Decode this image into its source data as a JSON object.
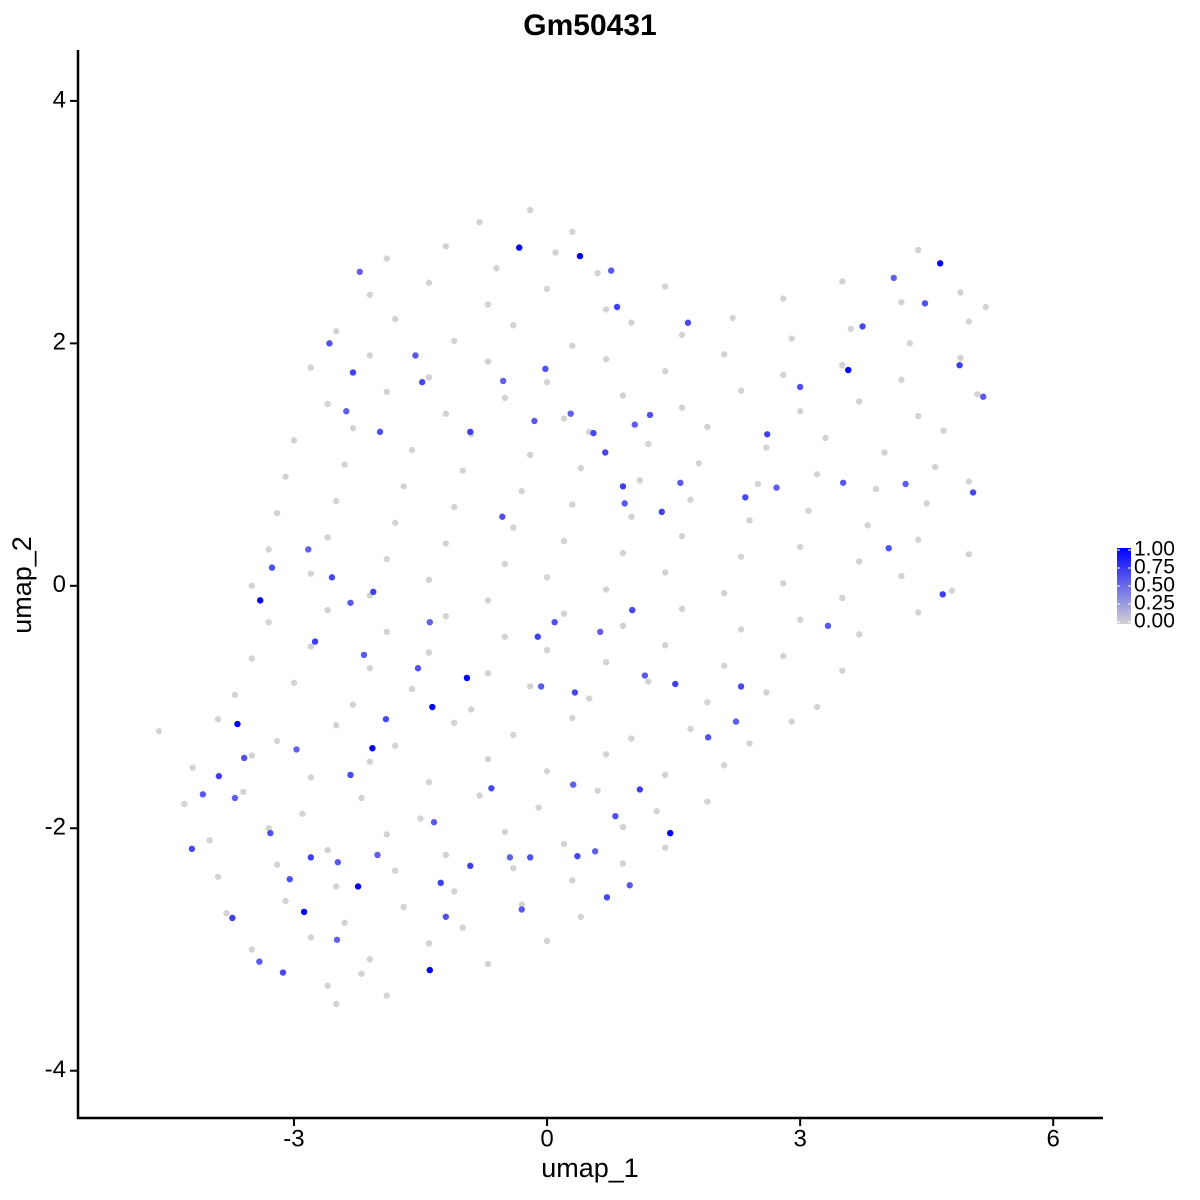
{
  "chart_data": {
    "type": "scatter",
    "title": "Gm50431",
    "xlabel": "umap_1",
    "ylabel": "umap_2",
    "xlim": [
      -5.56,
      6.59
    ],
    "ylim": [
      -4.39,
      4.42
    ],
    "xticks": [
      -3,
      0,
      3,
      6
    ],
    "yticks": [
      -4,
      -2,
      0,
      2,
      4
    ],
    "colorbar": {
      "colors": [
        "lightgrey",
        "blue"
      ],
      "lim": [
        0,
        1
      ],
      "ticks": [
        {
          "value": 0,
          "label": "0.00"
        },
        {
          "value": 0.25,
          "label": "0.25"
        },
        {
          "value": 0.5,
          "label": "0.50"
        },
        {
          "value": 0.75,
          "label": "0.75"
        },
        {
          "value": 1,
          "label": "1.00"
        }
      ]
    },
    "x": [
      -0.8,
      -0.2,
      0.3,
      -1.9,
      -1.2,
      -0.6,
      0.1,
      0.6,
      4.4,
      -2.1,
      -1.4,
      -0.7,
      0,
      0.7,
      1.4,
      2.8,
      3.5,
      4.2,
      4.9,
      5.2,
      -2.5,
      -1.8,
      -1.1,
      -0.4,
      0.3,
      1.0,
      1.6,
      2.2,
      2.9,
      3.6,
      4.3,
      5.0,
      -2.8,
      -2.1,
      -1.4,
      -0.7,
      0,
      0.7,
      1.4,
      2.1,
      2.8,
      3.5,
      4.2,
      4.9,
      -2.6,
      -1.9,
      -1.2,
      -0.5,
      0.2,
      0.9,
      1.6,
      2.3,
      3.0,
      3.7,
      4.4,
      5.1,
      -3.0,
      -2.3,
      -1.6,
      -0.9,
      -0.2,
      0.5,
      1.2,
      1.9,
      2.6,
      3.3,
      4.0,
      4.7,
      -3.1,
      -2.4,
      -1.7,
      -1.0,
      -0.3,
      0.4,
      1.1,
      1.8,
      2.5,
      3.2,
      3.9,
      4.6,
      5.0,
      -3.2,
      -2.5,
      -1.8,
      -1.1,
      -0.4,
      0.3,
      1.0,
      1.7,
      2.4,
      3.1,
      3.8,
      4.5,
      -3.3,
      -2.6,
      -1.9,
      -1.2,
      -0.5,
      0.2,
      0.9,
      1.6,
      2.3,
      3.0,
      3.7,
      4.4,
      5.0,
      -3.5,
      -2.8,
      -2.1,
      -1.4,
      -0.7,
      0,
      0.7,
      1.4,
      2.1,
      2.8,
      3.5,
      4.2,
      4.8,
      -3.3,
      -2.6,
      -1.9,
      -1.2,
      -0.5,
      0.2,
      0.9,
      1.6,
      2.3,
      3.0,
      3.7,
      4.4,
      -3.5,
      -2.8,
      -2.1,
      -1.4,
      -0.7,
      0,
      0.7,
      1.4,
      2.1,
      2.8,
      3.5,
      -3.7,
      -3.0,
      -2.3,
      -1.6,
      -0.9,
      -0.2,
      0.5,
      1.2,
      1.9,
      2.6,
      3.2,
      -4.6,
      -3.9,
      -3.2,
      -2.5,
      -1.8,
      -1.1,
      -0.4,
      0.3,
      1.0,
      1.7,
      2.4,
      2.9,
      -4.2,
      -3.5,
      -2.8,
      -2.1,
      -1.4,
      -0.7,
      0,
      0.7,
      1.4,
      2.1,
      -4.3,
      -3.6,
      -2.9,
      -2.2,
      -1.5,
      -0.8,
      -0.1,
      0.6,
      1.3,
      1.9,
      -4.0,
      -3.3,
      -2.6,
      -1.9,
      -1.2,
      -0.5,
      0.2,
      0.9,
      1.4,
      -3.9,
      -3.2,
      -2.5,
      -1.8,
      -1.1,
      -0.4,
      0.3,
      0.9,
      -3.8,
      -3.1,
      -2.4,
      -1.7,
      -1.0,
      -0.3,
      0.4,
      -3.5,
      -2.8,
      -2.1,
      -1.4,
      -0.7,
      0.0,
      -2.6,
      -2.2,
      -1.9,
      -2.5,
      -0.33,
      0.39,
      4.66,
      3.57,
      -3.4,
      -0.95,
      -1.36,
      -3.67,
      -2.07,
      1.46,
      -2.24,
      -2.88,
      -1.39,
      -2.22,
      -2.58,
      -2.3,
      -1.56,
      -1.48,
      -0.52,
      -0.02,
      0.83,
      0.76,
      1.67,
      -2.38,
      -1.98,
      -0.91,
      -0.15,
      0.69,
      1.04,
      1.22,
      0.9,
      1.58,
      2.35,
      2.72,
      3.0,
      2.61,
      3.51,
      3.74,
      4.11,
      4.48,
      4.89,
      5.17,
      5.05,
      4.25,
      4.05,
      4.69,
      3.33,
      2.3,
      2.24,
      1.91,
      1.52,
      1.16,
      1.01,
      0.63,
      0.09,
      -0.11,
      -0.07,
      0.33,
      -1.39,
      -1.53,
      -2.06,
      -2.33,
      -2.55,
      -2.83,
      -3.26,
      -2.75,
      -2.17,
      -1.91,
      -2.97,
      -3.59,
      -3.89,
      -4.08,
      -4.21,
      -3.7,
      -3.28,
      -2.8,
      -2.48,
      -2.33,
      -2.01,
      -3.05,
      -3.73,
      -3.41,
      -3.13,
      -2.49,
      -1.2,
      -1.26,
      -1.34,
      -0.66,
      -0.44,
      -0.2,
      -0.91,
      -0.3,
      0.36,
      0.31,
      0.81,
      1.1,
      0.98,
      0.71,
      0.57,
      -0.53,
      1.36,
      0.92,
      0.55,
      0.28
    ],
    "y": [
      3.0,
      3.1,
      2.92,
      2.7,
      2.8,
      2.62,
      2.75,
      2.58,
      2.77,
      2.4,
      2.5,
      2.32,
      2.45,
      2.28,
      2.47,
      2.37,
      2.51,
      2.34,
      2.42,
      2.3,
      2.1,
      2.2,
      2.02,
      2.15,
      1.98,
      2.17,
      2.07,
      2.21,
      2.04,
      2.12,
      2.0,
      2.18,
      1.8,
      1.9,
      1.72,
      1.85,
      1.68,
      1.87,
      1.77,
      1.91,
      1.74,
      1.82,
      1.7,
      1.88,
      1.5,
      1.6,
      1.42,
      1.55,
      1.38,
      1.57,
      1.47,
      1.61,
      1.44,
      1.52,
      1.4,
      1.58,
      1.2,
      1.3,
      1.12,
      1.25,
      1.08,
      1.27,
      1.17,
      1.31,
      1.14,
      1.22,
      1.1,
      1.28,
      0.9,
      1.0,
      0.82,
      0.95,
      0.78,
      0.97,
      0.87,
      1.01,
      0.84,
      0.92,
      0.8,
      0.98,
      0.86,
      0.6,
      0.7,
      0.52,
      0.65,
      0.48,
      0.67,
      0.57,
      0.71,
      0.54,
      0.62,
      0.5,
      0.68,
      0.3,
      0.4,
      0.22,
      0.35,
      0.18,
      0.37,
      0.27,
      0.41,
      0.24,
      0.32,
      0.2,
      0.38,
      0.26,
      0,
      0.1,
      -0.08,
      0.05,
      -0.12,
      0.07,
      -0.03,
      0.11,
      -0.06,
      0.02,
      -0.1,
      0.08,
      -0.04,
      -0.3,
      -0.2,
      -0.38,
      -0.25,
      -0.42,
      -0.23,
      -0.33,
      -0.19,
      -0.36,
      -0.28,
      -0.4,
      -0.22,
      -0.6,
      -0.5,
      -0.68,
      -0.55,
      -0.72,
      -0.53,
      -0.63,
      -0.49,
      -0.66,
      -0.58,
      -0.7,
      -0.9,
      -0.8,
      -0.98,
      -0.85,
      -1.02,
      -0.83,
      -0.93,
      -0.79,
      -0.96,
      -0.88,
      -1.0,
      -1.2,
      -1.1,
      -1.28,
      -1.15,
      -1.32,
      -1.13,
      -1.23,
      -1.09,
      -1.26,
      -1.18,
      -1.3,
      -1.12,
      -1.5,
      -1.4,
      -1.58,
      -1.45,
      -1.62,
      -1.43,
      -1.53,
      -1.39,
      -1.56,
      -1.48,
      -1.8,
      -1.7,
      -1.88,
      -1.75,
      -1.92,
      -1.73,
      -1.83,
      -1.69,
      -1.86,
      -1.78,
      -2.1,
      -2.0,
      -2.18,
      -2.05,
      -2.22,
      -2.03,
      -2.13,
      -1.99,
      -2.16,
      -2.4,
      -2.3,
      -2.48,
      -2.35,
      -2.52,
      -2.33,
      -2.43,
      -2.29,
      -2.7,
      -2.6,
      -2.78,
      -2.65,
      -2.82,
      -2.63,
      -2.73,
      -3.0,
      -2.9,
      -3.08,
      -2.95,
      -3.12,
      -2.93,
      -3.3,
      -3.2,
      -3.38,
      -3.45,
      2.79,
      2.72,
      2.66,
      1.78,
      -0.12,
      -0.76,
      -1.0,
      -1.14,
      -1.34,
      -2.04,
      -2.48,
      -2.69,
      -3.17,
      2.59,
      2.0,
      1.76,
      1.9,
      1.68,
      1.69,
      1.79,
      2.3,
      2.6,
      2.17,
      1.44,
      1.27,
      1.27,
      1.36,
      1.1,
      1.33,
      1.41,
      0.82,
      0.85,
      0.73,
      0.81,
      1.64,
      1.25,
      0.85,
      2.14,
      2.54,
      2.33,
      1.82,
      1.56,
      0.77,
      0.84,
      0.31,
      -0.07,
      -0.33,
      -0.83,
      -1.12,
      -1.25,
      -0.81,
      -0.74,
      -0.2,
      -0.38,
      -0.3,
      -0.42,
      -0.83,
      -0.88,
      -0.3,
      -0.68,
      -0.05,
      -0.14,
      0.07,
      0.3,
      0.15,
      -0.46,
      -0.57,
      -1.1,
      -1.35,
      -1.42,
      -1.57,
      -1.72,
      -2.17,
      -1.75,
      -2.04,
      -2.24,
      -2.28,
      -1.56,
      -2.22,
      -2.42,
      -2.74,
      -3.1,
      -3.19,
      -2.92,
      -2.73,
      -2.45,
      -1.95,
      -1.67,
      -2.24,
      -2.24,
      -2.31,
      -2.67,
      -2.23,
      -1.64,
      -1.9,
      -1.68,
      -2.47,
      -2.57,
      -2.19,
      0.57,
      0.61,
      0.68,
      1.26,
      1.42
    ],
    "values": [
      0,
      0,
      0,
      0,
      0,
      0,
      0,
      0,
      0,
      0,
      0,
      0,
      0,
      0,
      0,
      0,
      0,
      0,
      0,
      0,
      0,
      0,
      0,
      0,
      0,
      0,
      0,
      0,
      0,
      0,
      0,
      0,
      0,
      0,
      0,
      0,
      0,
      0,
      0,
      0,
      0,
      0,
      0,
      0,
      0,
      0,
      0,
      0,
      0,
      0,
      0,
      0,
      0,
      0,
      0,
      0,
      0,
      0,
      0,
      0,
      0,
      0,
      0,
      0,
      0,
      0,
      0,
      0,
      0,
      0,
      0,
      0,
      0,
      0,
      0,
      0,
      0,
      0,
      0,
      0,
      0,
      0,
      0,
      0,
      0,
      0,
      0,
      0,
      0,
      0,
      0,
      0,
      0,
      0,
      0,
      0,
      0,
      0,
      0,
      0,
      0,
      0,
      0,
      0,
      0,
      0,
      0,
      0,
      0,
      0,
      0,
      0,
      0,
      0,
      0,
      0,
      0,
      0,
      0,
      0,
      0,
      0,
      0,
      0,
      0,
      0,
      0,
      0,
      0,
      0,
      0,
      0,
      0,
      0,
      0,
      0,
      0,
      0,
      0,
      0,
      0,
      0,
      0,
      0,
      0,
      0,
      0,
      0,
      0,
      0,
      0,
      0,
      0,
      0,
      0,
      0,
      0,
      0,
      0,
      0,
      0,
      0,
      0,
      0,
      0,
      0,
      0,
      0,
      0,
      0,
      0,
      0,
      0,
      0,
      0,
      0,
      0,
      0,
      0,
      0,
      0,
      0,
      0,
      0,
      0,
      0,
      0,
      0,
      0,
      0,
      0,
      0,
      0,
      0,
      0,
      0,
      0,
      0,
      0,
      0,
      0,
      0,
      0,
      0,
      0,
      0,
      0,
      0,
      0,
      0,
      0,
      0,
      0,
      0,
      0,
      0,
      0,
      0,
      0,
      1,
      1,
      1,
      1,
      1,
      1,
      1,
      1,
      1,
      1,
      1,
      1,
      1,
      0.55,
      0.62,
      0.7,
      0.58,
      0.66,
      0.55,
      0.62,
      0.7,
      0.58,
      0.66,
      0.55,
      0.62,
      0.7,
      0.58,
      0.66,
      0.55,
      0.62,
      0.7,
      0.58,
      0.66,
      0.55,
      0.62,
      0.7,
      0.58,
      0.66,
      0.55,
      0.62,
      0.7,
      0.58,
      0.66,
      0.55,
      0.62,
      0.7,
      0.58,
      0.66,
      0.55,
      0.62,
      0.7,
      0.58,
      0.66,
      0.55,
      0.62,
      0.7,
      0.58,
      0.66,
      0.55,
      0.62,
      0.7,
      0.58,
      0.66,
      0.55,
      0.62,
      0.7,
      0.58,
      0.66,
      0.55,
      0.62,
      0.7,
      0.58,
      0.66,
      0.55,
      0.62,
      0.7,
      0.58,
      0.66,
      0.55,
      0.62,
      0.7,
      0.58,
      0.66,
      0.55,
      0.62,
      0.7,
      0.58,
      0.66,
      0.55,
      0.62,
      0.7,
      0.58,
      0.66,
      0.55,
      0.62,
      0.7,
      0.58,
      0.66,
      0.55,
      0.62,
      0.7,
      0.58,
      0.66,
      0.55
    ]
  }
}
